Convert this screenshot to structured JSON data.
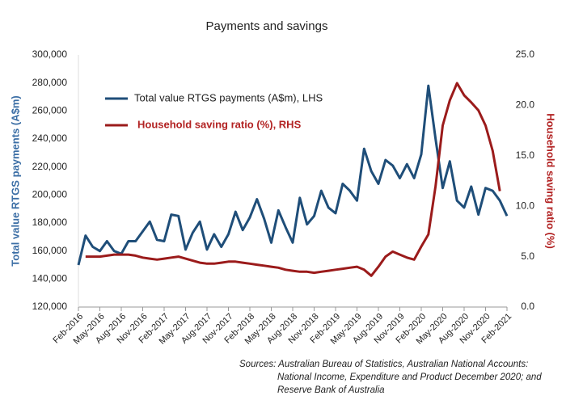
{
  "chart_data": {
    "type": "line",
    "title": "Payments and savings",
    "y_label": "Total value RTGS payments (A$m)",
    "y2_label": "Household saving ratio (%)",
    "categories": [
      "Feb-2016",
      null,
      null,
      "May-2016",
      null,
      null,
      "Aug-2016",
      null,
      null,
      "Nov-2016",
      null,
      null,
      "Feb-2017",
      null,
      null,
      "May-2017",
      null,
      null,
      "Aug-2017",
      null,
      null,
      "Nov-2017",
      null,
      null,
      "Feb-2018",
      null,
      null,
      "May-2018",
      null,
      null,
      "Aug-2018",
      null,
      null,
      "Nov-2018",
      null,
      null,
      "Feb-2019",
      null,
      null,
      "May-2019",
      null,
      null,
      "Aug-2019",
      null,
      null,
      "Nov-2019",
      null,
      null,
      "Feb-2020",
      null,
      null,
      "May-2020",
      null,
      null,
      "Aug-2020",
      null,
      null,
      "Nov-2020",
      null,
      null,
      "Feb-2021"
    ],
    "series": [
      {
        "name": "Total value RTGS payments (A$m), LHS",
        "color": "#1f4e79",
        "axis": "y",
        "values": [
          150000,
          171000,
          163000,
          160000,
          167000,
          160000,
          158000,
          167000,
          167000,
          174000,
          181000,
          168000,
          167000,
          186000,
          185000,
          161000,
          173000,
          181000,
          161000,
          172000,
          163000,
          172000,
          188000,
          175000,
          184000,
          197000,
          183000,
          166000,
          189000,
          177000,
          166000,
          198000,
          179000,
          185000,
          203000,
          191000,
          187000,
          208000,
          203000,
          196000,
          233000,
          217000,
          208000,
          225000,
          221000,
          212000,
          222000,
          212000,
          229000,
          278000,
          240000,
          205000,
          224000,
          196000,
          191000,
          206000,
          186000,
          205000,
          203000,
          196000,
          185000
        ]
      },
      {
        "name": "Household saving ratio (%), RHS",
        "color": "#9b1b1b",
        "axis": "y2",
        "values": [
          null,
          5.0,
          5.0,
          5.0,
          5.1,
          5.2,
          5.2,
          5.2,
          5.1,
          4.9,
          4.8,
          4.7,
          4.8,
          4.9,
          5.0,
          4.8,
          4.6,
          4.4,
          4.3,
          4.3,
          4.4,
          4.5,
          4.5,
          4.4,
          4.3,
          4.2,
          4.1,
          4.0,
          3.9,
          3.7,
          3.6,
          3.5,
          3.5,
          3.4,
          3.5,
          3.6,
          3.7,
          3.8,
          3.9,
          4.0,
          3.7,
          3.1,
          4.0,
          5.0,
          5.5,
          5.2,
          4.9,
          4.7,
          6.0,
          7.2,
          12.0,
          18.0,
          20.5,
          22.2,
          21.0,
          20.3,
          19.5,
          18.0,
          15.5,
          11.5,
          null
        ]
      }
    ],
    "ylim": [
      120000,
      300000
    ],
    "yticks": [
      {
        "value": 120000,
        "label": "120,000"
      },
      {
        "value": 140000,
        "label": "140,000"
      },
      {
        "value": 160000,
        "label": "160,000"
      },
      {
        "value": 180000,
        "label": "180,000"
      },
      {
        "value": 200000,
        "label": "200,000"
      },
      {
        "value": 220000,
        "label": "220,000"
      },
      {
        "value": 240000,
        "label": "240,000"
      },
      {
        "value": 260000,
        "label": "260,000"
      },
      {
        "value": 280000,
        "label": "280,000"
      },
      {
        "value": 300000,
        "label": "300,000"
      }
    ],
    "y2lim": [
      0,
      25
    ],
    "y2ticks": [
      {
        "value": 0,
        "label": "0.0"
      },
      {
        "value": 5,
        "label": "5.0"
      },
      {
        "value": 10,
        "label": "10.0"
      },
      {
        "value": 15,
        "label": "15.0"
      },
      {
        "value": 20,
        "label": "20.0"
      },
      {
        "value": 25,
        "label": "25.0"
      }
    ],
    "grid": false,
    "legend": "upper left",
    "source": [
      "Sources: Australian Bureau of Statistics, Australian National Accounts:",
      "National Income, Expenditure and Product December 2020; and",
      "Reserve Bank of Australia"
    ]
  }
}
